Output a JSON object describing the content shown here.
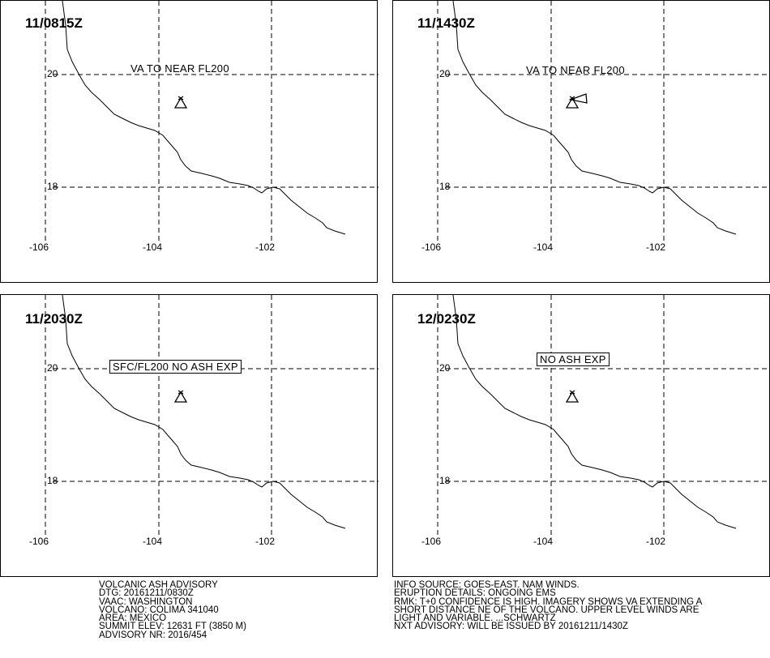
{
  "panels": [
    {
      "time": "11/0815Z",
      "label": "VA TO NEAR FL200",
      "label_boxed": false,
      "plume": false
    },
    {
      "time": "11/1430Z",
      "label": "VA TO NEAR FL200",
      "label_boxed": false,
      "plume": true
    },
    {
      "time": "11/2030Z",
      "label": "SFC/FL200 NO ASH EXP",
      "label_boxed": true,
      "plume": false
    },
    {
      "time": "12/0230Z",
      "label": "NO ASH EXP",
      "label_boxed": true,
      "plume": false
    }
  ],
  "axes": {
    "lon_ticks": [
      "-106",
      "-104",
      "-102"
    ],
    "lat_ticks": [
      "20",
      "18"
    ]
  },
  "advisory": {
    "title": "VOLCANIC ASH ADVISORY",
    "dtg": "DTG: 20161211/0830Z",
    "vaac": "VAAC: WASHINGTON",
    "volcano": "VOLCANO: COLIMA 341040",
    "area": "AREA: MEXICO",
    "summit": "SUMMIT ELEV: 12631 FT (3850 M)",
    "advisory_nr": "ADVISORY NR: 2016/454"
  },
  "info": {
    "source": "INFO SOURCE: GOES-EAST. NAM WINDS.",
    "eruption": "ERUPTION DETAILS: ONGOING EMS",
    "rmk1": "RMK: T+0 CONFIDENCE IS HIGH. IMAGERY SHOWS VA EXTENDING A",
    "rmk2": "SHORT DISTANCE NE OF THE VOLCANO. UPPER LEVEL WINDS ARE",
    "rmk3": "LIGHT AND VARIABLE. ...SCHWARTZ",
    "next": "NXT ADVISORY: WILL BE ISSUED BY 20161211/1430Z"
  }
}
